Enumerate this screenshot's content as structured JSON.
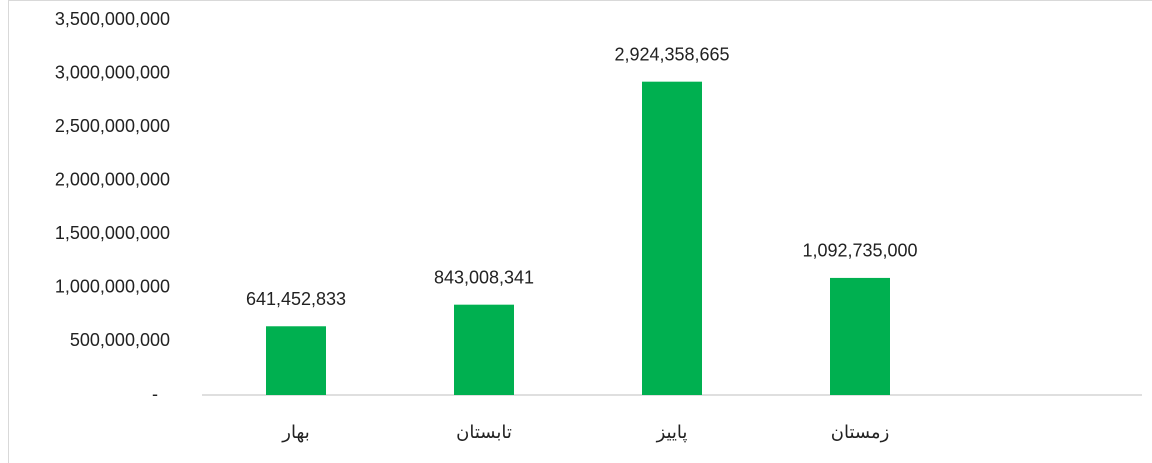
{
  "chart_data": {
    "type": "bar",
    "categories": [
      "بهار",
      "تابستان",
      "پاییز",
      "زمستان"
    ],
    "values": [
      641452833,
      843008341,
      2924358665,
      1092735000
    ],
    "value_labels": [
      "641,452,833",
      "843,008,341",
      "2,924,358,665",
      "1,092,735,000"
    ],
    "color": "#00b050",
    "ylim": [
      0,
      3500000000
    ],
    "yticks": [
      {
        "value": 0,
        "label": "-"
      },
      {
        "value": 500000000,
        "label": "500,000,000"
      },
      {
        "value": 1000000000,
        "label": "1,000,000,000"
      },
      {
        "value": 1500000000,
        "label": "1,500,000,000"
      },
      {
        "value": 2000000000,
        "label": "2,000,000,000"
      },
      {
        "value": 2500000000,
        "label": "2,500,000,000"
      },
      {
        "value": 3000000000,
        "label": "3,000,000,000"
      },
      {
        "value": 3500000000,
        "label": "3,500,000,000"
      }
    ],
    "grid": false
  }
}
